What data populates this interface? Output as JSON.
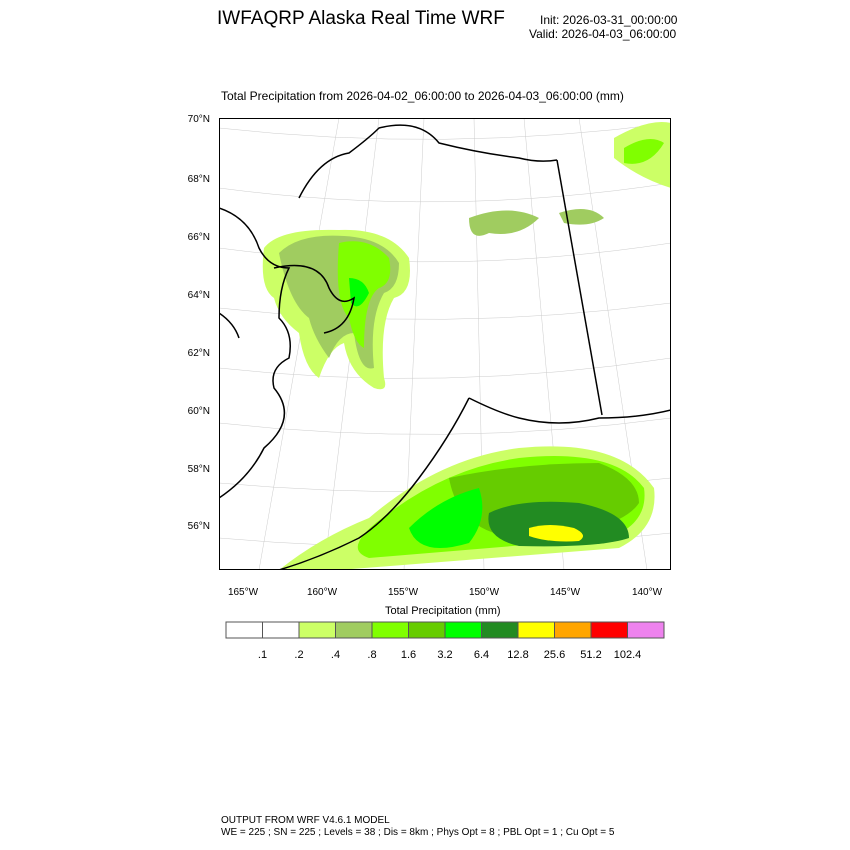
{
  "header": {
    "title": "IWFAQRP Alaska Real Time WRF",
    "init": "Init: 2026-03-31_00:00:00",
    "valid": "Valid: 2026-04-03_06:00:00"
  },
  "map": {
    "subtitle": "Total Precipitation from 2026-04-02_06:00:00 to 2026-04-03_06:00:00   (mm)",
    "lat_labels": [
      "70°N",
      "68°N",
      "66°N",
      "64°N",
      "62°N",
      "60°N",
      "58°N",
      "56°N"
    ],
    "lon_labels": [
      "165°W",
      "160°W",
      "155°W",
      "150°W",
      "145°W",
      "140°W"
    ]
  },
  "colorbar": {
    "title": "Total Precipitation  (mm)",
    "levels": [
      ".1",
      ".2",
      ".4",
      ".8",
      "1.6",
      "3.2",
      "6.4",
      "12.8",
      "25.6",
      "51.2",
      "102.4"
    ],
    "colors": [
      "#ffffff",
      "#ffffff",
      "#ccff66",
      "#a0cc60",
      "#80ff00",
      "#66cc00",
      "#00ff00",
      "#228b22",
      "#ffff00",
      "#ffa500",
      "#ff0000",
      "#ee82ee"
    ]
  },
  "footer": {
    "line1": "OUTPUT FROM WRF V4.6.1 MODEL",
    "line2": "WE = 225 ; SN = 225 ; Levels = 38 ; Dis = 8km ; Phys Opt = 8 ; PBL Opt = 1 ; Cu Opt = 5"
  }
}
